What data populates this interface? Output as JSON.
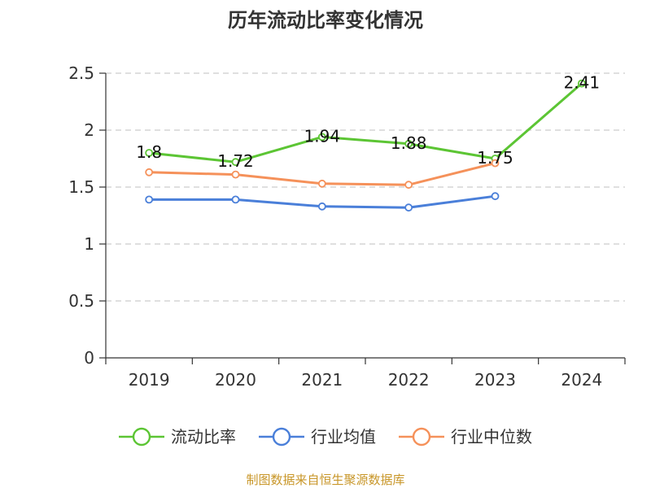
{
  "chart_data": {
    "type": "line",
    "title": "历年流动比率变化情况",
    "categories": [
      "2019",
      "2020",
      "2021",
      "2022",
      "2023",
      "2024"
    ],
    "ylim": [
      0,
      2.5
    ],
    "yticks": [
      0,
      0.5,
      1,
      1.5,
      2,
      2.5
    ],
    "ytick_labels": [
      "0",
      "0.5",
      "1",
      "1.5",
      "2",
      "2.5"
    ],
    "grid": true,
    "legend_position": "bottom",
    "series": [
      {
        "name": "流动比率",
        "color": "#5cc534",
        "values": [
          1.8,
          1.72,
          1.94,
          1.88,
          1.75,
          2.41
        ],
        "labels": [
          "1.8",
          "1.72",
          "1.94",
          "1.88",
          "1.75",
          "2.41"
        ]
      },
      {
        "name": "行业均值",
        "color": "#4a7fd9",
        "values": [
          1.39,
          1.39,
          1.33,
          1.32,
          1.42,
          null
        ]
      },
      {
        "name": "行业中位数",
        "color": "#f5915a",
        "values": [
          1.63,
          1.61,
          1.53,
          1.52,
          1.71,
          null
        ]
      }
    ],
    "source": "制图数据来自恒生聚源数据库"
  }
}
